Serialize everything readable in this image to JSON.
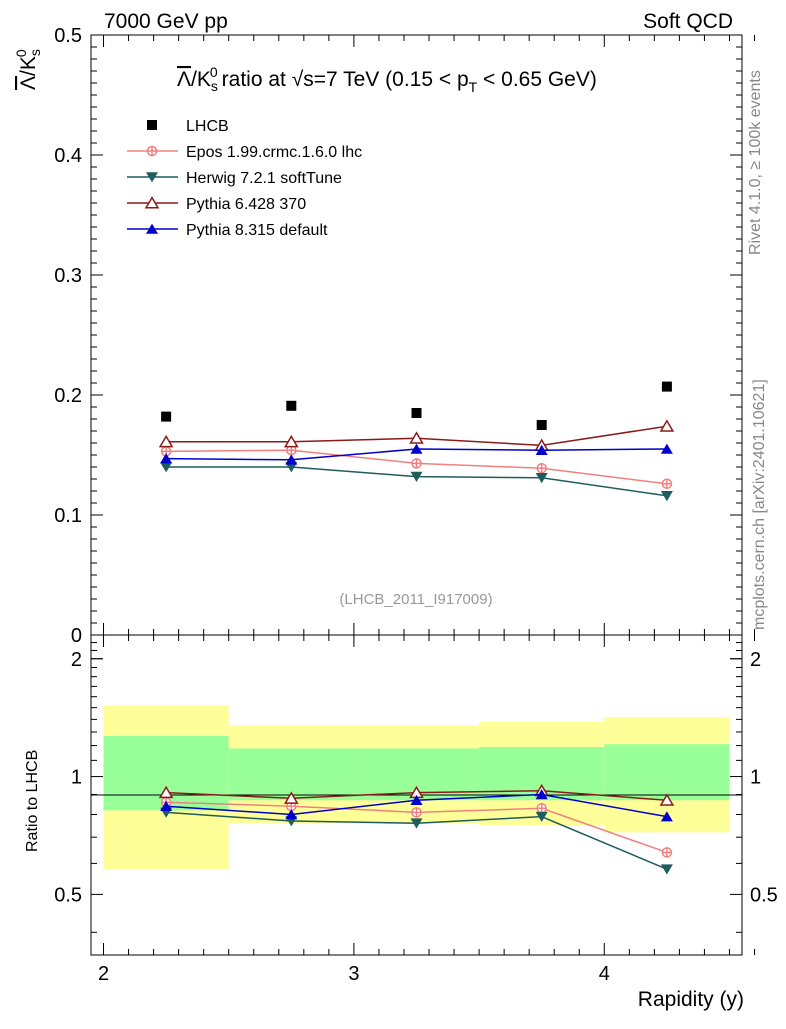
{
  "header": {
    "left": "7000 GeV pp",
    "right": "Soft QCD"
  },
  "side": {
    "top": "Rivet 4.1.0, ≥ 100k events",
    "bottom": "mcplots.cern.ch [arXiv:2401.10621]"
  },
  "chart_data": [
    {
      "type": "scatter",
      "title": "Λ̄/K⁰s ratio at √s=7 TeV (0.15 < pT < 0.65 GeV)",
      "ylabel": "Λ̄/K⁰s",
      "xlabel": "",
      "analysis": "(LHCB_2011_I917009)",
      "xlim": [
        1.95,
        4.55
      ],
      "ylim": [
        0,
        0.5
      ],
      "yticks": [
        "0",
        "0.1",
        "0.2",
        "0.3",
        "0.4",
        "0.5"
      ],
      "x": [
        2.25,
        2.75,
        3.25,
        3.75,
        4.25
      ],
      "series": [
        {
          "name": "LHCB",
          "color": "#000000",
          "marker": "square",
          "line": false,
          "values": [
            0.182,
            0.191,
            0.185,
            0.175,
            0.207
          ]
        },
        {
          "name": "Epos 1.99.crmc.1.6.0 lhc",
          "color": "#f08080",
          "marker": "plus-circle",
          "line": true,
          "values": [
            0.153,
            0.154,
            0.143,
            0.139,
            0.126
          ]
        },
        {
          "name": "Herwig 7.2.1 softTune",
          "color": "#1f5c5c",
          "marker": "triangle-down",
          "line": true,
          "values": [
            0.14,
            0.14,
            0.132,
            0.131,
            0.116
          ]
        },
        {
          "name": "Pythia 6.428 370",
          "color": "#8b1a1a",
          "marker": "triangle-up-open",
          "line": true,
          "values": [
            0.161,
            0.161,
            0.164,
            0.158,
            0.174
          ]
        },
        {
          "name": "Pythia 8.315 default",
          "color": "#0000cc",
          "marker": "triangle-up",
          "line": true,
          "values": [
            0.147,
            0.146,
            0.155,
            0.154,
            0.155
          ]
        }
      ]
    },
    {
      "type": "scatter",
      "title": "",
      "ylabel": "Ratio to LHCB",
      "xlabel": "Rapidity (y)",
      "xlim": [
        1.95,
        4.55
      ],
      "ylim": [
        0.35,
        2.3
      ],
      "yticks": [
        "0.5",
        "1",
        "2"
      ],
      "xticks": [
        "2",
        "3",
        "4"
      ],
      "bins": [
        [
          2.0,
          2.5
        ],
        [
          2.5,
          3.0
        ],
        [
          3.0,
          3.5
        ],
        [
          3.5,
          4.0
        ],
        [
          4.0,
          4.5
        ]
      ],
      "band_inner": [
        [
          0.82,
          1.27
        ],
        [
          0.87,
          1.18
        ],
        [
          0.87,
          1.18
        ],
        [
          0.87,
          1.19
        ],
        [
          0.87,
          1.21
        ]
      ],
      "band_outer": [
        [
          0.58,
          1.52
        ],
        [
          0.76,
          1.35
        ],
        [
          0.76,
          1.35
        ],
        [
          0.75,
          1.38
        ],
        [
          0.72,
          1.42
        ]
      ],
      "x": [
        2.25,
        2.75,
        3.25,
        3.75,
        4.25
      ],
      "series": [
        {
          "name": "Epos 1.99.crmc.1.6.0 lhc",
          "color": "#f08080",
          "marker": "plus-circle",
          "values": [
            0.86,
            0.84,
            0.81,
            0.83,
            0.64
          ]
        },
        {
          "name": "Herwig 7.2.1 softTune",
          "color": "#1f5c5c",
          "marker": "triangle-down",
          "values": [
            0.81,
            0.77,
            0.76,
            0.79,
            0.58
          ]
        },
        {
          "name": "Pythia 6.428 370",
          "color": "#8b1a1a",
          "marker": "triangle-up-open",
          "values": [
            0.91,
            0.88,
            0.91,
            0.92,
            0.87
          ]
        },
        {
          "name": "Pythia 8.315 default",
          "color": "#0000cc",
          "marker": "triangle-up",
          "values": [
            0.84,
            0.8,
            0.87,
            0.9,
            0.79
          ]
        }
      ]
    }
  ]
}
